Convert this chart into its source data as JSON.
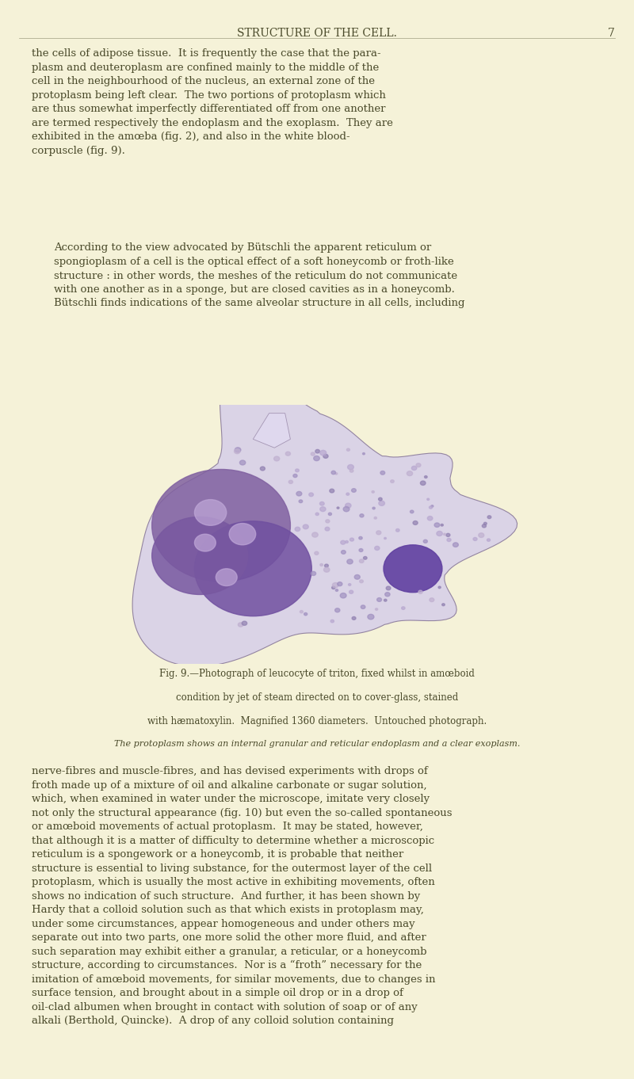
{
  "bg_color": "#f5f2d8",
  "text_color": "#4a4a2a",
  "header_text": "STRUCTURE OF THE CELL.",
  "page_number": "7",
  "header_fontsize": 10,
  "body_fontsize": 9.5,
  "caption_fontsize": 8.5,
  "small_caption_fontsize": 8,
  "paragraph1": "the cells of adipose tissue.  It is frequently the case that the para-\nplasm and deuteroplasm are confined mainly to the middle of the\ncell in the neighbourhood of the nucleus, an external zone of the\nprotoplasm being left clear.  The two portions of protoplasm which\nare thus somewhat imperfectly differentiated off from one another\nare termed respectively the endoplasm and the exoplasm.  They are\nexhibited in the amœba (fig. 2), and also in the white blood-\ncorpuscle (fig. 9).",
  "paragraph2": "According to the view advocated by Bütschli the apparent reticulum or\nspongioplasm of a cell is the optical effect of a soft honeycomb or froth-like\nstructure : in other words, the meshes of the reticulum do not communicate\nwith one another as in a sponge, but are closed cavities as in a honeycomb.\nBütschli finds indications of the same alveolar structure in all cells, including",
  "fig_caption_line1": "Fig. 9.—Photograph of leucocyte of triton, fixed whilst in amœboid",
  "fig_caption_line2": "condition by jet of steam directed on to cover-glass, stained",
  "fig_caption_line3": "with hæmatoxylin.  Magnified 1360 diameters.  Untouched photograph.",
  "fig_caption_line4": "The protoplasm shows an internal granular and reticular endoplasm and a clear exoplasm.",
  "paragraph3": "nerve-fibres and muscle-fibres, and has devised experiments with drops of\nfroth made up of a mixture of oil and alkaline carbonate or sugar solution,\nwhich, when examined in water under the microscope, imitate very closely\nnot only the structural appearance (fig. 10) but even the so-called spontaneous\nor amœboid movements of actual protoplasm.  It may be stated, however,\nthat although it is a matter of difficulty to determine whether a microscopic\nreticulum is a spongework or a honeycomb, it is probable that neither\nstructure is essential to living substance, for the outermost layer of the cell\nprotoplasm, which is usually the most active in exhibiting movements, often\nshows no indication of such structure.  And further, it has been shown by\nHardy that a colloid solution such as that which exists in protoplasm may,\nunder some circumstances, appear homogeneous and under others may\nseparate out into two parts, one more solid the other more fluid, and after\nsuch separation may exhibit either a granular, a reticular, or a honeycomb\nstructure, according to circumstances.  Nor is a “froth” necessary for the\nimitation of amœboid movements, for similar movements, due to changes in\nsurface tension, and brought about in a simple oil drop or in a drop of\noil-clad albumen when brought in contact with solution of soap or of any\nalkali (Berthold, Quincke).  A drop of any colloid solution containing"
}
